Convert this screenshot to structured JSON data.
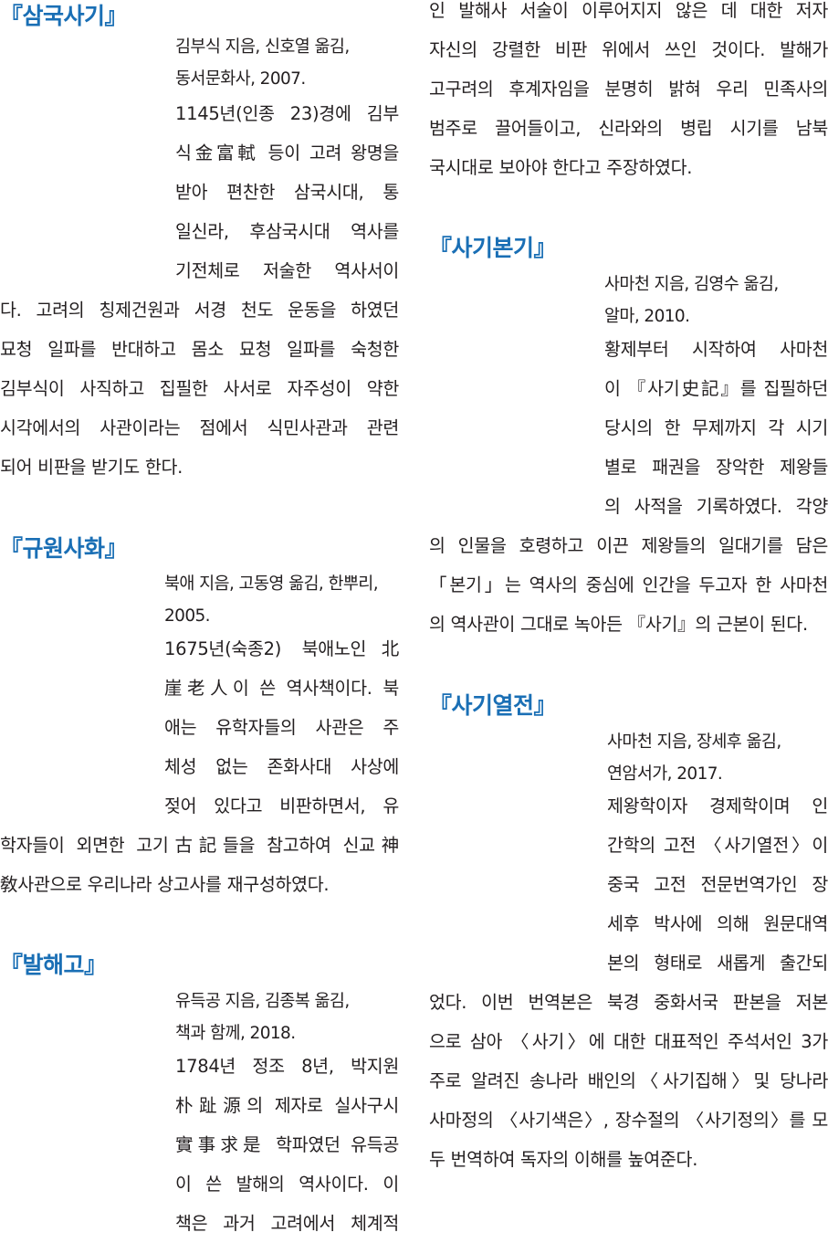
{
  "colors": {
    "title": "#1a6fb5",
    "text": "#231f20"
  },
  "left_column": {
    "sections": [
      {
        "title": "『삼국사기』",
        "meta": [
          "김부식 지음, 신호열 옮김,",
          "동서문화사, 2007."
        ],
        "body": [
          "1145년(인종 23)경에 김부",
          "식金富軾 등이 고려 왕명을",
          "받아 편찬한 삼국시대, 통",
          "일신라, 후삼국시대 역사를",
          "기전체로 저술한 역사서이",
          "다. 고려의 칭제건원과 서경 천도 운동을 하였던",
          "묘청 일파를 반대하고 몸소 묘청 일파를 숙청한",
          "김부식이 사직하고 집필한 사서로 자주성이 약한",
          "시각에서의 사관이라는 점에서 식민사관과 관련",
          "되어 비판을 받기도 한다."
        ]
      },
      {
        "title": "『규원사화』",
        "meta": [
          "북애 지음, 고동영 옮김, 한뿌리,",
          "2005."
        ],
        "body": [
          "1675년(숙종2) 북애노인北",
          "崖老人이 쓴 역사책이다. 북",
          "애는 유학자들의 사관은 주",
          "체성 없는 존화사대 사상에",
          "젖어 있다고 비판하면서, 유",
          "학자들이 외면한 고기古記들을 참고하여 신교神",
          "敎사관으로 우리나라 상고사를 재구성하였다."
        ]
      },
      {
        "title": "『발해고』",
        "meta": [
          "유득공 지음, 김종복 옮김,",
          "책과 함께, 2018."
        ],
        "body": [
          "1784년 정조 8년, 박지원",
          "朴趾源의 제자로 실사구시",
          "實事求是 학파였던 유득공",
          "이 쓴 발해의 역사이다. 이",
          "책은 과거 고려에서 체계적"
        ]
      }
    ]
  },
  "right_column": {
    "continuation": [
      "인 발해사 서술이 이루어지지 않은 데 대한 저자",
      "자신의 강렬한 비판 위에서 쓰인 것이다. 발해가",
      "고구려의 후계자임을 분명히 밝혀 우리 민족사의",
      "범주로 끌어들이고, 신라와의 병립 시기를 남북",
      "국시대로 보아야 한다고 주장하였다."
    ],
    "sections": [
      {
        "title": "『사기본기』",
        "meta": [
          "사마천 지음, 김영수 옮김,",
          "알마, 2010."
        ],
        "body": [
          "황제부터 시작하여 사마천",
          "이 『사기史記』를 집필하던",
          "당시의 한 무제까지 각 시기",
          "별로 패권을 장악한 제왕들",
          "의 사적을 기록하였다. 각양",
          "의 인물을 호령하고 이끈 제왕들의 일대기를 담은",
          "「본기」는 역사의 중심에 인간을 두고자 한 사마천",
          "의 역사관이 그대로 녹아든 『사기』의 근본이 된다."
        ]
      },
      {
        "title": "『사기열전』",
        "meta": [
          "사마천 지음, 장세후 옮김,",
          "연암서가, 2017."
        ],
        "body": [
          "제왕학이자 경제학이며 인",
          "간학의 고전 〈사기열전〉이",
          "중국 고전 전문번역가인 장",
          "세후 박사에 의해 원문대역",
          "본의 형태로 새롭게 출간되",
          "었다. 이번 번역본은 북경 중화서국 판본을 저본",
          "으로 삼아 〈사기〉에 대한 대표적인 주석서인 3가",
          "주로 알려진 송나라 배인의〈사기집해〉및 당나라",
          "사마정의 〈사기색은〉, 장수절의 〈사기정의〉를 모",
          "두 번역하여 독자의 이해를 높여준다."
        ]
      }
    ]
  }
}
